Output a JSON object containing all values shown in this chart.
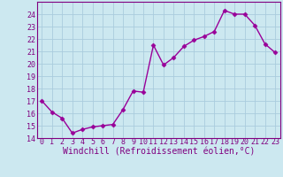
{
  "x": [
    0,
    1,
    2,
    3,
    4,
    5,
    6,
    7,
    8,
    9,
    10,
    11,
    12,
    13,
    14,
    15,
    16,
    17,
    18,
    19,
    20,
    21,
    22,
    23
  ],
  "y": [
    17.0,
    16.1,
    15.6,
    14.4,
    14.7,
    14.9,
    15.0,
    15.1,
    16.3,
    17.8,
    17.7,
    21.5,
    19.9,
    20.5,
    21.4,
    21.9,
    22.2,
    22.6,
    24.3,
    24.0,
    24.0,
    23.1,
    21.6,
    20.9
  ],
  "line_color": "#990099",
  "marker": "D",
  "marker_size": 2.5,
  "bg_color": "#cce8f0",
  "grid_color": "#aaccdd",
  "xlabel": "Windchill (Refroidissement éolien,°C)",
  "xlim": [
    -0.5,
    23.5
  ],
  "ylim": [
    14,
    25
  ],
  "yticks": [
    14,
    15,
    16,
    17,
    18,
    19,
    20,
    21,
    22,
    23,
    24
  ],
  "xticks": [
    0,
    1,
    2,
    3,
    4,
    5,
    6,
    7,
    8,
    9,
    10,
    11,
    12,
    13,
    14,
    15,
    16,
    17,
    18,
    19,
    20,
    21,
    22,
    23
  ],
  "label_color": "#800080",
  "tick_color": "#800080",
  "spine_color": "#800080",
  "xlabel_fontsize": 7.0,
  "tick_fontsize": 6.0,
  "line_width": 1.0
}
